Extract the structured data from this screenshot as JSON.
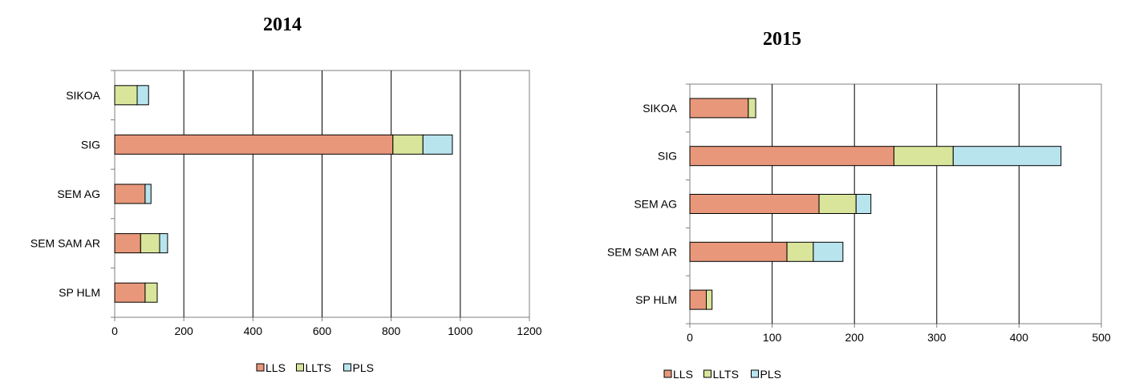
{
  "chart_data": [
    {
      "type": "bar",
      "orientation": "horizontal",
      "stacked": true,
      "title": "2014",
      "categories": [
        "SIKOA",
        "SIG",
        "SEMAG",
        "SEMSAMAR",
        "SPHLM"
      ],
      "category_labels": [
        "SIKOA",
        "SIG",
        "SEM AG",
        "SEM SAM AR",
        "SP HLM"
      ],
      "series": [
        {
          "name": "LLS",
          "values": [
            0,
            805,
            88,
            75,
            88
          ]
        },
        {
          "name": "LLTS",
          "values": [
            65,
            87,
            0,
            55,
            35
          ]
        },
        {
          "name": "PLS",
          "values": [
            33,
            85,
            17,
            23,
            0
          ]
        }
      ],
      "xlim": [
        0,
        1200
      ],
      "xticks": [
        0,
        200,
        400,
        600,
        800,
        1000,
        1200
      ],
      "xtick_labels": [
        "0",
        "200",
        "400",
        "600",
        "800",
        "1000",
        "1200"
      ],
      "grid": true,
      "legend": "bottom"
    },
    {
      "type": "bar",
      "orientation": "horizontal",
      "stacked": true,
      "title": "2015",
      "categories": [
        "SIKOA",
        "SIG",
        "SEMAG",
        "SEMSAMAR",
        "SPHLM"
      ],
      "category_labels": [
        "SIKOA",
        "SIG",
        "SEM AG",
        "SEM SAM AR",
        "SP HLM"
      ],
      "series": [
        {
          "name": "LLS",
          "values": [
            71,
            248,
            157,
            118,
            20
          ]
        },
        {
          "name": "LLTS",
          "values": [
            9,
            72,
            45,
            32,
            7
          ]
        },
        {
          "name": "PLS",
          "values": [
            0,
            131,
            18,
            36,
            0
          ]
        }
      ],
      "xlim": [
        0,
        500
      ],
      "xticks": [
        0,
        100,
        200,
        300,
        400,
        500
      ],
      "xtick_labels": [
        "0",
        "100",
        "200",
        "300",
        "400",
        "500"
      ],
      "grid": true,
      "legend": "bottom"
    }
  ],
  "colors": {
    "LLS": "#e8977a",
    "LLTS": "#d9e59a",
    "PLS": "#b8e4ee",
    "grid": "#000000",
    "axis": "#7f7f7f"
  }
}
